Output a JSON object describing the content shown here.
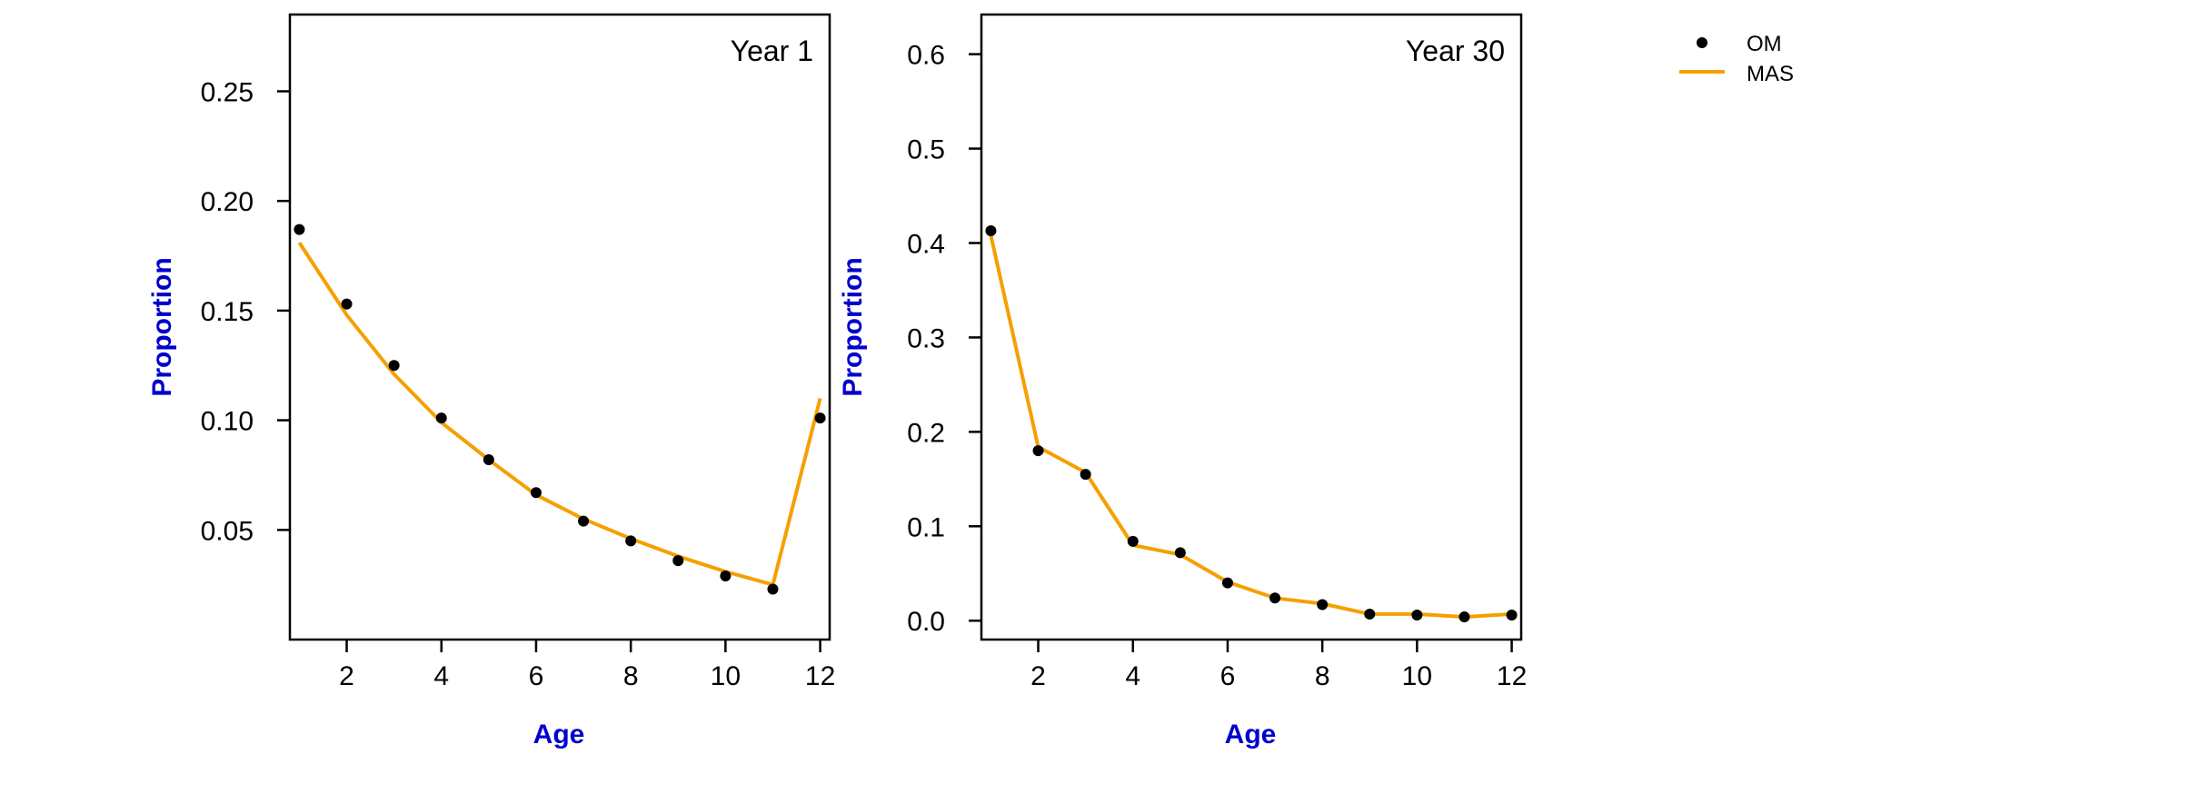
{
  "colors": {
    "om": "#000000",
    "mas": "#f5a000",
    "axis_title": "#0000cc",
    "frame": "#000000"
  },
  "legend": {
    "placement": "top-right",
    "entries": [
      {
        "label": "OM",
        "marker": "point",
        "color": "#000000"
      },
      {
        "label": "MAS",
        "marker": "line",
        "color": "#f5a000"
      }
    ]
  },
  "chart_data": [
    {
      "type": "line",
      "title": "Year 1",
      "xlabel": "Age",
      "ylabel": "Proportion",
      "xlim": [
        0.8,
        12.2
      ],
      "ylim": [
        0.0,
        0.285
      ],
      "xticks": [
        2,
        4,
        6,
        8,
        10,
        12
      ],
      "yticks": [
        0.05,
        0.1,
        0.15,
        0.2,
        0.25
      ],
      "ytick_labels": [
        "0.05",
        "0.10",
        "0.15",
        "0.20",
        "0.25"
      ],
      "grid": false,
      "series": [
        {
          "name": "OM",
          "marker": "point",
          "x": [
            1,
            2,
            3,
            4,
            5,
            6,
            7,
            8,
            9,
            10,
            11,
            12
          ],
          "values": [
            0.187,
            0.153,
            0.125,
            0.101,
            0.082,
            0.067,
            0.054,
            0.045,
            0.036,
            0.029,
            0.023,
            0.101
          ]
        },
        {
          "name": "MAS",
          "marker": "line",
          "x": [
            1,
            2,
            3,
            4,
            5,
            6,
            7,
            8,
            9,
            10,
            11,
            12
          ],
          "values": [
            0.181,
            0.148,
            0.121,
            0.099,
            0.082,
            0.066,
            0.055,
            0.046,
            0.038,
            0.031,
            0.025,
            0.11
          ]
        }
      ]
    },
    {
      "type": "line",
      "title": "Year 30",
      "xlabel": "Age",
      "ylabel": "Proportion",
      "xlim": [
        0.8,
        12.2
      ],
      "ylim": [
        -0.02,
        0.642
      ],
      "xticks": [
        2,
        4,
        6,
        8,
        10,
        12
      ],
      "yticks": [
        0.0,
        0.1,
        0.2,
        0.3,
        0.4,
        0.5,
        0.6
      ],
      "ytick_labels": [
        "0.0",
        "0.1",
        "0.2",
        "0.3",
        "0.4",
        "0.5",
        "0.6"
      ],
      "grid": false,
      "series": [
        {
          "name": "OM",
          "marker": "point",
          "x": [
            1,
            2,
            3,
            4,
            5,
            6,
            7,
            8,
            9,
            10,
            11,
            12
          ],
          "values": [
            0.413,
            0.18,
            0.155,
            0.084,
            0.072,
            0.04,
            0.024,
            0.017,
            0.007,
            0.006,
            0.004,
            0.006
          ]
        },
        {
          "name": "MAS",
          "marker": "line",
          "x": [
            1,
            2,
            3,
            4,
            5,
            6,
            7,
            8,
            9,
            10,
            11,
            12
          ],
          "values": [
            0.408,
            0.184,
            0.157,
            0.08,
            0.07,
            0.041,
            0.024,
            0.018,
            0.007,
            0.007,
            0.004,
            0.007
          ]
        }
      ]
    }
  ]
}
